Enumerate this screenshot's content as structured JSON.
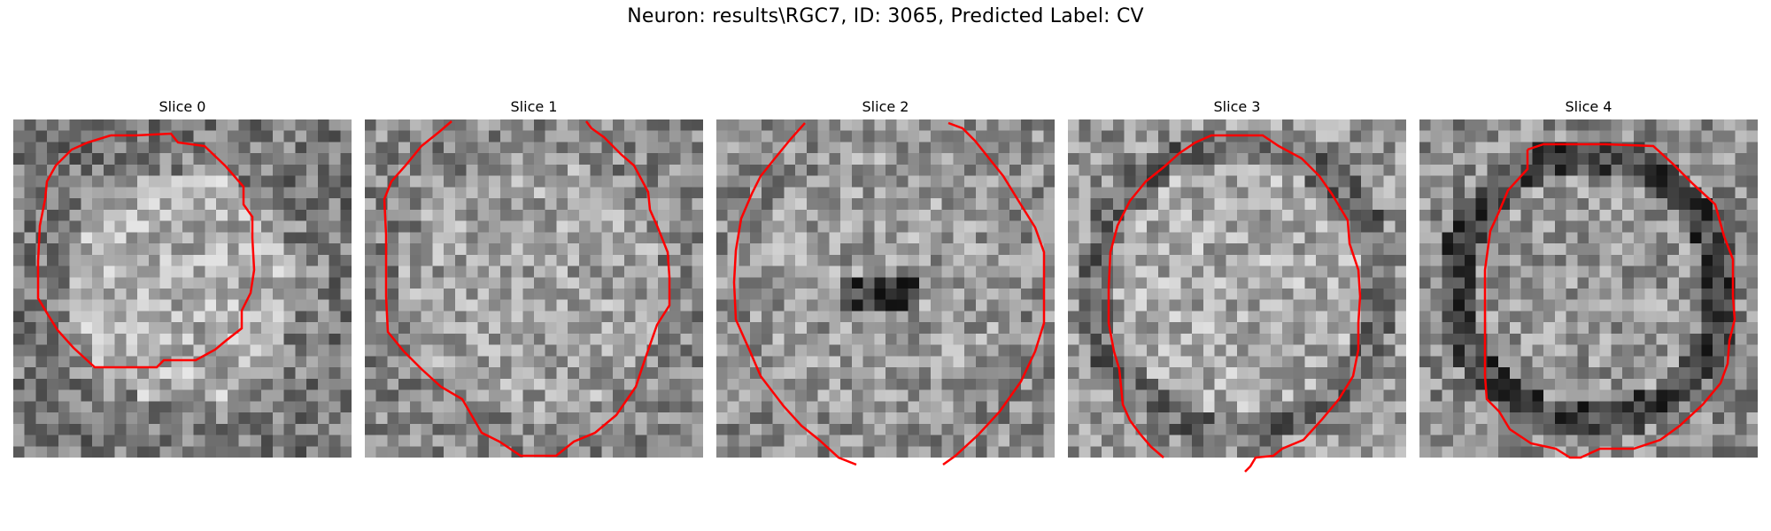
{
  "figure": {
    "title": "Neuron: results\\RGC7, ID: 3065, Predicted Label: CV"
  },
  "colors": {
    "contour": "#ff0000",
    "background": "#ffffff"
  },
  "panels": [
    {
      "title": "Slice 0",
      "appearance": "bright center, dark outer edges"
    },
    {
      "title": "Slice 1",
      "appearance": "uniform mid-grey, open contour"
    },
    {
      "title": "Slice 2",
      "appearance": "dark spot in center"
    },
    {
      "title": "Slice 3",
      "appearance": "darker ring outside contour"
    },
    {
      "title": "Slice 4",
      "appearance": "dark ring along contour"
    }
  ]
}
